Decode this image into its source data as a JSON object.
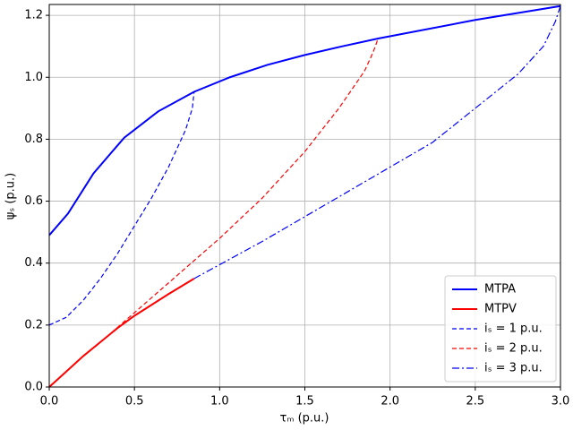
{
  "chart_data": {
    "type": "line",
    "xlabel": "τₘ (p.u.)",
    "ylabel": "ψₛ (p.u.)",
    "xlim": [
      0,
      3
    ],
    "ylim": [
      0,
      1.235
    ],
    "xticks": [
      {
        "value": 0,
        "label": "0.0"
      },
      0.5,
      {
        "value": 1,
        "label": "1.0"
      },
      1.5,
      {
        "value": 2,
        "label": "2.0"
      },
      2.5,
      {
        "value": 3,
        "label": "3.0"
      }
    ],
    "yticks": [
      {
        "value": 0,
        "label": "0.0"
      },
      0.2,
      0.4,
      0.6,
      0.8,
      {
        "value": 1,
        "label": "1.0"
      },
      1.2
    ],
    "grid": true,
    "legend": "lower right",
    "series": [
      {
        "name": "MTPA",
        "color": "#0000ff",
        "dash": "solid",
        "x": [
          0,
          0.11,
          0.26,
          0.44,
          0.64,
          0.85,
          1.06,
          1.28,
          1.5,
          1.72,
          1.93,
          2.5,
          3.0
        ],
        "values": [
          0.49,
          0.56,
          0.69,
          0.805,
          0.89,
          0.953,
          1.0,
          1.04,
          1.072,
          1.1,
          1.125,
          1.185,
          1.23
        ]
      },
      {
        "name": "MTPV",
        "color": "#ff0000",
        "dash": "solid",
        "x": [
          0,
          0.1,
          0.2,
          0.3,
          0.4,
          0.5,
          0.6,
          0.7,
          0.85
        ],
        "values": [
          0,
          0.05,
          0.1,
          0.145,
          0.19,
          0.23,
          0.265,
          0.3,
          0.35
        ]
      },
      {
        "name": "iₛ =  1 p.u.",
        "color": "#0000ff",
        "dash": "dashed",
        "x": [
          0,
          0.1,
          0.2,
          0.3,
          0.4,
          0.5,
          0.6,
          0.7,
          0.8,
          0.84,
          0.85
        ],
        "values": [
          0.2,
          0.225,
          0.28,
          0.35,
          0.43,
          0.52,
          0.61,
          0.71,
          0.83,
          0.9,
          0.953
        ]
      },
      {
        "name": "iₛ =  2 p.u.",
        "color": "#ff0000",
        "dash": "dashed",
        "x": [
          0.27,
          0.5,
          0.75,
          1.0,
          1.25,
          1.5,
          1.7,
          1.85,
          1.9,
          1.93
        ],
        "values": [
          0.13,
          0.24,
          0.36,
          0.48,
          0.61,
          0.76,
          0.9,
          1.02,
          1.08,
          1.125
        ]
      },
      {
        "name": "iₛ =  3 p.u.",
        "color": "#0000ff",
        "dash": "dashdot",
        "x": [
          0.85,
          1.0,
          1.25,
          1.5,
          1.75,
          2.0,
          2.25,
          2.5,
          2.75,
          2.9,
          2.97,
          3.0
        ],
        "values": [
          0.35,
          0.395,
          0.47,
          0.55,
          0.63,
          0.71,
          0.79,
          0.9,
          1.01,
          1.1,
          1.18,
          1.23
        ]
      }
    ]
  }
}
